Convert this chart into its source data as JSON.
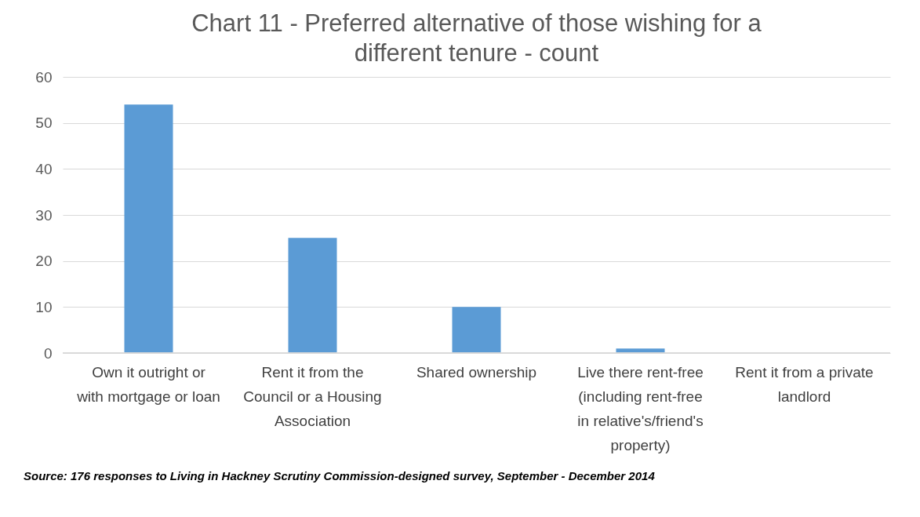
{
  "chart_data": {
    "type": "bar",
    "title": "Chart 11 - Preferred alternative of those wishing for a different tenure - count",
    "categories": [
      "Own it outright or with mortgage or loan",
      "Rent it from the Council or a Housing Association",
      "Shared ownership",
      "Live there rent-free (including rent-free in relative's/friend's property)",
      "Rent it from a private landlord"
    ],
    "values": [
      54,
      25,
      10,
      1,
      0
    ],
    "color": "#5b9bd5",
    "ylim": [
      0,
      60
    ],
    "yticks": [
      0,
      10,
      20,
      30,
      40,
      50,
      60
    ],
    "grid": "y",
    "annotations": [
      "Source: 176 responses to Living in Hackney Scrutiny Commission-designed survey, September - December 2014"
    ]
  }
}
